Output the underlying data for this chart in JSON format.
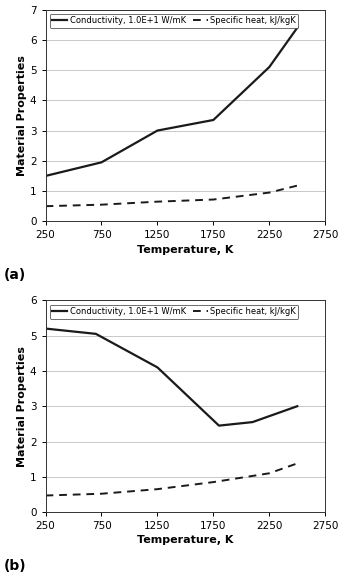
{
  "panel_a": {
    "conductivity_x": [
      250,
      750,
      1250,
      1750,
      2250,
      2500
    ],
    "conductivity_y": [
      1.5,
      1.95,
      3.0,
      3.35,
      5.1,
      6.4
    ],
    "specific_heat_x": [
      250,
      750,
      1250,
      1750,
      2250,
      2500
    ],
    "specific_heat_y": [
      0.5,
      0.55,
      0.65,
      0.72,
      0.95,
      1.18
    ],
    "xlim": [
      250,
      2750
    ],
    "ylim": [
      0,
      7
    ],
    "xticks": [
      250,
      750,
      1250,
      1750,
      2250,
      2750
    ],
    "yticks": [
      0,
      1,
      2,
      3,
      4,
      5,
      6,
      7
    ]
  },
  "panel_b": {
    "conductivity_x": [
      250,
      700,
      1250,
      1800,
      2100,
      2500
    ],
    "conductivity_y": [
      5.2,
      5.05,
      4.1,
      2.45,
      2.55,
      3.0
    ],
    "specific_heat_x": [
      250,
      750,
      1250,
      1750,
      2250,
      2500
    ],
    "specific_heat_y": [
      0.47,
      0.52,
      0.65,
      0.85,
      1.1,
      1.38
    ],
    "xlim": [
      250,
      2750
    ],
    "ylim": [
      0,
      6
    ],
    "xticks": [
      250,
      750,
      1250,
      1750,
      2250,
      2750
    ],
    "yticks": [
      0,
      1,
      2,
      3,
      4,
      5,
      6
    ]
  },
  "legend_conductivity": "Conductivity, 1.0E+1 W/mK",
  "legend_specific_heat": "Specific heat, kJ/kgK",
  "xlabel": "Temperature, K",
  "ylabel": "Material Properties",
  "label_a": "(a)",
  "label_b": "(b)",
  "line_color": "#1a1a1a",
  "background_color": "#ffffff",
  "grid_color": "#c0c0c0"
}
